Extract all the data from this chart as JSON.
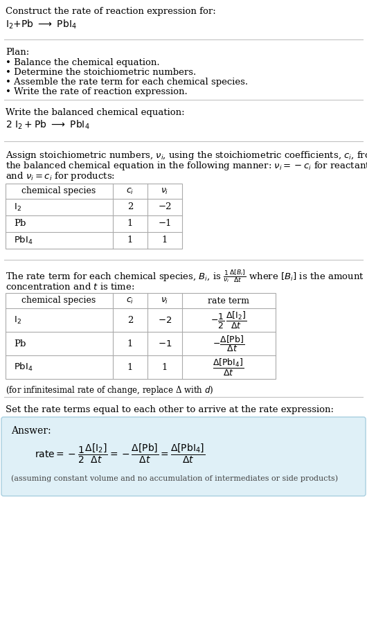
{
  "title_text": "Construct the rate of reaction expression for:",
  "plan_label": "Plan:",
  "plan_items": [
    "• Balance the chemical equation.",
    "• Determine the stoichiometric numbers.",
    "• Assemble the rate term for each chemical species.",
    "• Write the rate of reaction expression."
  ],
  "balanced_label": "Write the balanced chemical equation:",
  "stoich_intro_line1": "Assign stoichiometric numbers, $\\nu_i$, using the stoichiometric coefficients, $c_i$, from",
  "stoich_intro_line2": "the balanced chemical equation in the following manner: $\\nu_i = -c_i$ for reactants",
  "stoich_intro_line3": "and $\\nu_i = c_i$ for products:",
  "rate_intro_line1": "The rate term for each chemical species, $B_i$, is $\\frac{1}{\\nu_i}\\frac{\\Delta[B_i]}{\\Delta t}$ where $[B_i]$ is the amount",
  "rate_intro_line2": "concentration and $t$ is time:",
  "infinitesimal_note": "(for infinitesimal rate of change, replace Δ with $d$)",
  "set_equal_text": "Set the rate terms equal to each other to arrive at the rate expression:",
  "answer_label": "Answer:",
  "assuming_note": "(assuming constant volume and no accumulation of intermediates or side products)",
  "bg_color": "#ffffff",
  "answer_box_color": "#dff0f7",
  "answer_box_border": "#a8cfe0",
  "text_color": "#000000",
  "font_size": 9.5,
  "hline_color": "#bbbbbb",
  "table_border_color": "#aaaaaa"
}
